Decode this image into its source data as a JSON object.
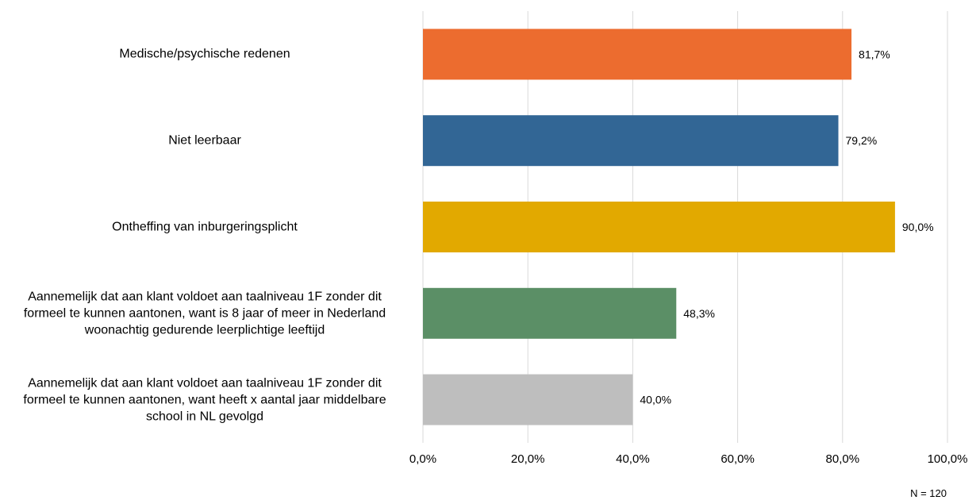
{
  "chart_data": {
    "type": "bar",
    "orientation": "horizontal",
    "categories": [
      "Medische/psychische redenen",
      "Niet leerbaar",
      "Ontheffing van inburgeringsplicht",
      "Aannemelijk dat aan klant voldoet aan taalniveau 1F zonder dit formeel te kunnen aantonen, want is 8 jaar of meer in Nederland woonachtig gedurende leerplichtige leeftijd",
      "Aannemelijk dat aan klant voldoet aan taalniveau 1F zonder dit formeel te kunnen aantonen, want heeft x aantal jaar middelbare school in NL gevolgd"
    ],
    "category_lines": [
      [
        "Medische/psychische redenen"
      ],
      [
        "Niet leerbaar"
      ],
      [
        "Ontheffing van inburgeringsplicht"
      ],
      [
        "Aannemelijk dat aan klant voldoet aan taalniveau 1F zonder dit",
        "formeel te kunnen aantonen, want is 8 jaar of meer in Nederland",
        "woonachtig gedurende leerplichtige leeftijd"
      ],
      [
        "Aannemelijk dat aan klant voldoet aan taalniveau 1F zonder dit",
        "formeel te kunnen aantonen, want heeft x aantal jaar middelbare",
        "school in NL gevolgd"
      ]
    ],
    "values": [
      81.7,
      79.2,
      90.0,
      48.3,
      40.0
    ],
    "value_labels": [
      "81,7%",
      "79,2%",
      "90,0%",
      "48,3%",
      "40,0%"
    ],
    "colors": [
      "#EC6C2F",
      "#326695",
      "#E2A900",
      "#5B8F66",
      "#BEBEBE"
    ],
    "xlim": [
      0,
      100
    ],
    "xticks": [
      0,
      20,
      40,
      60,
      80,
      100
    ],
    "xtick_labels": [
      "0,0%",
      "20,0%",
      "40,0%",
      "60,0%",
      "80,0%",
      "100,0%"
    ],
    "grid": true,
    "gridline_color": "#D9D9D9",
    "note": "N = 120"
  }
}
